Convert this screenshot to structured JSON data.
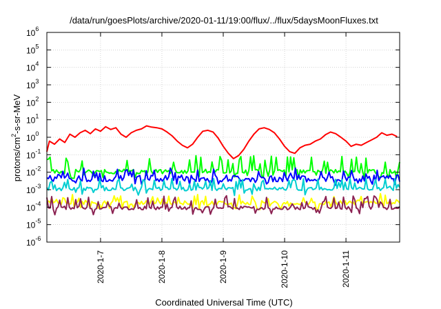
{
  "chart_data": {
    "type": "line",
    "title": "/data/run/goesPlots/archive/2020-01-11/19:00/flux/../flux/5daysMoonFluxes.txt",
    "xlabel": "Coordinated Universal Time (UTC)",
    "ylabel": {
      "prefix": "protons/cm",
      "sup": "2",
      "suffix": "-s-sr-MeV"
    },
    "yscale": "log",
    "ylim": [
      1e-06,
      1000000.0
    ],
    "xlim": [
      "2020-01-06 03:00",
      "2020-01-11 21:00"
    ],
    "y_ticks": [
      {
        "value": 1e-06,
        "base": "10",
        "exp": "-6"
      },
      {
        "value": 1e-05,
        "base": "10",
        "exp": "-5"
      },
      {
        "value": 0.0001,
        "base": "10",
        "exp": "-4"
      },
      {
        "value": 0.001,
        "base": "10",
        "exp": "-3"
      },
      {
        "value": 0.01,
        "base": "10",
        "exp": "-2"
      },
      {
        "value": 0.1,
        "base": "10",
        "exp": "-1"
      },
      {
        "value": 1,
        "base": "10",
        "exp": "0"
      },
      {
        "value": 10,
        "base": "10",
        "exp": "1"
      },
      {
        "value": 100,
        "base": "10",
        "exp": "2"
      },
      {
        "value": 1000,
        "base": "10",
        "exp": "3"
      },
      {
        "value": 10000,
        "base": "10",
        "exp": "4"
      },
      {
        "value": 100000,
        "base": "10",
        "exp": "5"
      },
      {
        "value": 1000000,
        "base": "10",
        "exp": "6"
      }
    ],
    "x_ticks": [
      "2020-1-7",
      "2020-1-8",
      "2020-1-9",
      "2020-1-10",
      "2020-1-11"
    ],
    "grid": true,
    "series": [
      {
        "color": "#ff0000",
        "points": [
          [
            "2020-01-06 03:00",
            0.15
          ],
          [
            "2020-01-06 04:00",
            0.6
          ],
          [
            "2020-01-06 06:00",
            0.4
          ],
          [
            "2020-01-06 08:00",
            0.8
          ],
          [
            "2020-01-06 10:00",
            0.5
          ],
          [
            "2020-01-06 12:00",
            1.5
          ],
          [
            "2020-01-06 14:00",
            1.0
          ],
          [
            "2020-01-06 16:00",
            1.8
          ],
          [
            "2020-01-06 18:00",
            2.5
          ],
          [
            "2020-01-06 20:00",
            1.6
          ],
          [
            "2020-01-06 22:00",
            3.0
          ],
          [
            "2020-01-07 00:00",
            2.2
          ],
          [
            "2020-01-07 02:00",
            4.0
          ],
          [
            "2020-01-07 04:00",
            2.8
          ],
          [
            "2020-01-07 06:00",
            3.5
          ],
          [
            "2020-01-07 08:00",
            1.5
          ],
          [
            "2020-01-07 10:00",
            1.0
          ],
          [
            "2020-01-07 12:00",
            1.8
          ],
          [
            "2020-01-07 14:00",
            2.5
          ],
          [
            "2020-01-07 16:00",
            3.0
          ],
          [
            "2020-01-07 18:00",
            4.5
          ],
          [
            "2020-01-07 20:00",
            3.8
          ],
          [
            "2020-01-07 22:00",
            3.5
          ],
          [
            "2020-01-08 00:00",
            3.0
          ],
          [
            "2020-01-08 02:00",
            2.0
          ],
          [
            "2020-01-08 04:00",
            1.2
          ],
          [
            "2020-01-08 06:00",
            0.6
          ],
          [
            "2020-01-08 08:00",
            0.35
          ],
          [
            "2020-01-08 10:00",
            0.25
          ],
          [
            "2020-01-08 12:00",
            0.4
          ],
          [
            "2020-01-08 14:00",
            1.0
          ],
          [
            "2020-01-08 16:00",
            2.2
          ],
          [
            "2020-01-08 18:00",
            2.5
          ],
          [
            "2020-01-08 20:00",
            2.0
          ],
          [
            "2020-01-08 22:00",
            0.9
          ],
          [
            "2020-01-09 00:00",
            0.3
          ],
          [
            "2020-01-09 02:00",
            0.12
          ],
          [
            "2020-01-09 04:00",
            0.06
          ],
          [
            "2020-01-09 06:00",
            0.09
          ],
          [
            "2020-01-09 08:00",
            0.2
          ],
          [
            "2020-01-09 10:00",
            0.6
          ],
          [
            "2020-01-09 12:00",
            1.5
          ],
          [
            "2020-01-09 14:00",
            3.0
          ],
          [
            "2020-01-09 16:00",
            3.5
          ],
          [
            "2020-01-09 18:00",
            2.8
          ],
          [
            "2020-01-09 20:00",
            1.8
          ],
          [
            "2020-01-09 22:00",
            0.8
          ],
          [
            "2020-01-10 00:00",
            0.3
          ],
          [
            "2020-01-10 02:00",
            0.15
          ],
          [
            "2020-01-10 04:00",
            0.12
          ],
          [
            "2020-01-10 06:00",
            0.25
          ],
          [
            "2020-01-10 08:00",
            0.35
          ],
          [
            "2020-01-10 10:00",
            0.4
          ],
          [
            "2020-01-10 12:00",
            0.6
          ],
          [
            "2020-01-10 14:00",
            0.8
          ],
          [
            "2020-01-10 16:00",
            1.4
          ],
          [
            "2020-01-10 18:00",
            2.0
          ],
          [
            "2020-01-10 20:00",
            1.6
          ],
          [
            "2020-01-10 22:00",
            1.0
          ],
          [
            "2020-01-11 00:00",
            0.6
          ],
          [
            "2020-01-11 02:00",
            0.3
          ],
          [
            "2020-01-11 04:00",
            0.4
          ],
          [
            "2020-01-11 06:00",
            0.35
          ],
          [
            "2020-01-11 08:00",
            0.5
          ],
          [
            "2020-01-11 10:00",
            0.7
          ],
          [
            "2020-01-11 12:00",
            1.0
          ],
          [
            "2020-01-11 14:00",
            1.8
          ],
          [
            "2020-01-11 16:00",
            1.3
          ],
          [
            "2020-01-11 18:00",
            1.5
          ],
          [
            "2020-01-11 20:00",
            1.1
          ]
        ]
      },
      {
        "color": "#00ff00",
        "base": 0.011,
        "spike": 0.06,
        "wobble": 1.8,
        "seed": 3
      },
      {
        "color": "#0000ff",
        "base": 0.0045,
        "spike": 0.012,
        "wobble": 2.5,
        "seed": 7
      },
      {
        "color": "#00ced1",
        "base": 0.0011,
        "spike": 0.003,
        "wobble": 1.6,
        "seed": 11
      },
      {
        "color": "#ffff00",
        "base": 0.00018,
        "spike": 0.0004,
        "wobble": 1.7,
        "seed": 17
      },
      {
        "color": "#8b2252",
        "base": 9e-05,
        "spike": 0.0003,
        "wobble": 1.6,
        "seed": 23
      }
    ]
  }
}
